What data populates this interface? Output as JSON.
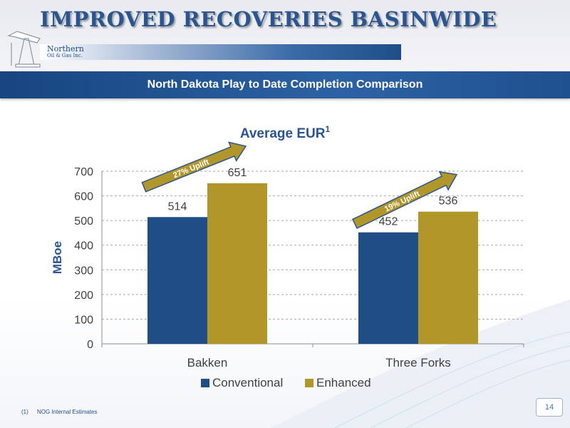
{
  "slide": {
    "title": "IMPROVED RECOVERIES BASINWIDE",
    "banner": "North Dakota Play to Date Completion Comparison",
    "logo_line1": "Northern",
    "logo_line2": "Oil & Gas Inc.",
    "footnote_number": "(1)",
    "footnote_text": "NOG Internal Estimates",
    "page_number": "14"
  },
  "colors": {
    "conventional": "#1f4e87",
    "enhanced": "#b1962a",
    "axis_text": "#404040",
    "title_blue": "#2a5591"
  },
  "chart_data": {
    "type": "bar",
    "title": "Average EUR",
    "title_superscript": "1",
    "ylabel": "MBoe",
    "xlabel": "",
    "categories": [
      "Bakken",
      "Three Forks"
    ],
    "series": [
      {
        "name": "Conventional",
        "values": [
          514,
          452
        ]
      },
      {
        "name": "Enhanced",
        "values": [
          651,
          536
        ]
      }
    ],
    "ylim": [
      0,
      700
    ],
    "yticks": [
      0,
      100,
      200,
      300,
      400,
      500,
      600,
      700
    ],
    "grid": "dashed horizontal",
    "legend": "bottom-center",
    "annotations": [
      {
        "text": "27% Uplift",
        "category": "Bakken"
      },
      {
        "text": "19% Uplift",
        "category": "Three Forks"
      }
    ]
  }
}
